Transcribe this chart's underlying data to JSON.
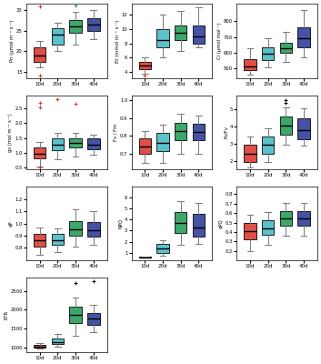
{
  "subplots": [
    {
      "ylabel": "Pn (μmol m⁻² s⁻¹)",
      "ylim": [
        13.5,
        31.5
      ],
      "yticks": [
        15,
        20,
        25,
        30
      ],
      "boxes": [
        {
          "q1": 17.5,
          "median": 19.0,
          "q3": 21.0,
          "whislo": 16.0,
          "whishi": 22.5,
          "fliers": [
            14.0,
            30.8
          ]
        },
        {
          "q1": 21.5,
          "median": 24.0,
          "q3": 25.5,
          "whislo": 20.0,
          "whishi": 27.0,
          "fliers": []
        },
        {
          "q1": 24.5,
          "median": 26.0,
          "q3": 27.5,
          "whislo": 21.5,
          "whishi": 29.5,
          "fliers": [
            31.2
          ]
        },
        {
          "q1": 25.0,
          "median": 26.5,
          "q3": 28.0,
          "whislo": 23.0,
          "whishi": 30.0,
          "fliers": []
        }
      ]
    },
    {
      "ylabel": "Et (mmol m⁻² s⁻¹)",
      "ylim": [
        3.2,
        13.5
      ],
      "yticks": [
        4,
        6,
        8,
        10,
        12
      ],
      "boxes": [
        {
          "q1": 4.4,
          "median": 4.9,
          "q3": 5.4,
          "whislo": 3.8,
          "whishi": 6.0,
          "fliers": [
            3.5
          ]
        },
        {
          "q1": 7.5,
          "median": 8.5,
          "q3": 10.0,
          "whislo": 6.0,
          "whishi": 12.0,
          "fliers": []
        },
        {
          "q1": 8.5,
          "median": 9.5,
          "q3": 10.5,
          "whislo": 7.0,
          "whishi": 12.5,
          "fliers": []
        },
        {
          "q1": 8.0,
          "median": 9.0,
          "q3": 10.5,
          "whislo": 7.5,
          "whishi": 13.0,
          "fliers": []
        }
      ]
    },
    {
      "ylabel": "Ci (μmol mol⁻¹)",
      "ylim": [
        440,
        910
      ],
      "yticks": [
        500,
        600,
        700,
        800
      ],
      "boxes": [
        {
          "q1": 490,
          "median": 510,
          "q3": 560,
          "whislo": 460,
          "whishi": 630,
          "fliers": []
        },
        {
          "q1": 555,
          "median": 595,
          "q3": 635,
          "whislo": 505,
          "whishi": 690,
          "fliers": []
        },
        {
          "q1": 600,
          "median": 630,
          "q3": 660,
          "whislo": 540,
          "whishi": 730,
          "fliers": []
        },
        {
          "q1": 635,
          "median": 690,
          "q3": 760,
          "whislo": 570,
          "whishi": 870,
          "fliers": []
        }
      ]
    },
    {
      "ylabel": "gs (mol m⁻² s⁻¹)",
      "ylim": [
        0.45,
        2.95
      ],
      "yticks": [
        0.5,
        1.0,
        1.5,
        2.0,
        2.5
      ],
      "boxes": [
        {
          "q1": 0.82,
          "median": 0.98,
          "q3": 1.18,
          "whislo": 0.55,
          "whishi": 1.38,
          "fliers": [
            0.5,
            2.55,
            2.7
          ]
        },
        {
          "q1": 1.08,
          "median": 1.28,
          "q3": 1.48,
          "whislo": 0.78,
          "whishi": 1.68,
          "fliers": [
            2.8
          ]
        },
        {
          "q1": 1.18,
          "median": 1.33,
          "q3": 1.48,
          "whislo": 0.88,
          "whishi": 1.68,
          "fliers": [
            2.65
          ]
        },
        {
          "q1": 1.13,
          "median": 1.28,
          "q3": 1.48,
          "whislo": 0.93,
          "whishi": 1.63,
          "fliers": []
        }
      ]
    },
    {
      "ylabel": "Fv / Fm",
      "ylim": [
        0.61,
        1.03
      ],
      "yticks": [
        0.7,
        0.8,
        0.9,
        1.0
      ],
      "boxes": [
        {
          "q1": 0.695,
          "median": 0.74,
          "q3": 0.785,
          "whislo": 0.645,
          "whishi": 0.825,
          "fliers": []
        },
        {
          "q1": 0.715,
          "median": 0.76,
          "q3": 0.815,
          "whislo": 0.645,
          "whishi": 0.865,
          "fliers": []
        },
        {
          "q1": 0.775,
          "median": 0.825,
          "q3": 0.875,
          "whislo": 0.695,
          "whishi": 0.925,
          "fliers": []
        },
        {
          "q1": 0.775,
          "median": 0.82,
          "q3": 0.87,
          "whislo": 0.695,
          "whishi": 0.915,
          "fliers": []
        }
      ]
    },
    {
      "ylabel": "Fo/Fv",
      "ylim": [
        1.5,
        5.8
      ],
      "yticks": [
        2,
        3,
        4,
        5
      ],
      "boxes": [
        {
          "q1": 1.9,
          "median": 2.4,
          "q3": 2.9,
          "whislo": 1.6,
          "whishi": 3.4,
          "fliers": []
        },
        {
          "q1": 2.4,
          "median": 2.9,
          "q3": 3.4,
          "whislo": 1.9,
          "whishi": 3.9,
          "fliers": []
        },
        {
          "q1": 3.5,
          "median": 4.05,
          "q3": 4.55,
          "whislo": 2.95,
          "whishi": 5.1,
          "fliers": [
            5.35,
            5.5
          ]
        },
        {
          "q1": 3.25,
          "median": 3.75,
          "q3": 4.45,
          "whislo": 2.85,
          "whishi": 5.05,
          "fliers": []
        }
      ]
    },
    {
      "ylabel": "qP",
      "ylim": [
        0.69,
        1.31
      ],
      "yticks": [
        0.8,
        0.9,
        1.0,
        1.1,
        1.2
      ],
      "boxes": [
        {
          "q1": 0.81,
          "median": 0.86,
          "q3": 0.91,
          "whislo": 0.74,
          "whishi": 0.97,
          "fliers": []
        },
        {
          "q1": 0.82,
          "median": 0.86,
          "q3": 0.91,
          "whislo": 0.76,
          "whishi": 0.96,
          "fliers": []
        },
        {
          "q1": 0.9,
          "median": 0.95,
          "q3": 1.02,
          "whislo": 0.81,
          "whishi": 1.12,
          "fliers": []
        },
        {
          "q1": 0.89,
          "median": 0.94,
          "q3": 1.01,
          "whislo": 0.82,
          "whishi": 1.1,
          "fliers": []
        }
      ]
    },
    {
      "ylabel": "NPQ",
      "ylim": [
        0.3,
        7.0
      ],
      "yticks": [
        1,
        2,
        3,
        4,
        5,
        6
      ],
      "boxes": [
        {
          "q1": 0.555,
          "median": 0.585,
          "q3": 0.615,
          "whislo": 0.535,
          "whishi": 0.635,
          "fliers": []
        },
        {
          "q1": 1.0,
          "median": 1.4,
          "q3": 1.8,
          "whislo": 0.7,
          "whishi": 2.1,
          "fliers": []
        },
        {
          "q1": 2.8,
          "median": 3.7,
          "q3": 4.7,
          "whislo": 1.7,
          "whishi": 5.7,
          "fliers": []
        },
        {
          "q1": 2.5,
          "median": 3.3,
          "q3": 4.5,
          "whislo": 1.8,
          "whishi": 5.5,
          "fliers": []
        }
      ]
    },
    {
      "ylabel": "qPQ",
      "ylim": [
        0.1,
        0.88
      ],
      "yticks": [
        0.2,
        0.3,
        0.4,
        0.5,
        0.6,
        0.7,
        0.8
      ],
      "boxes": [
        {
          "q1": 0.32,
          "median": 0.41,
          "q3": 0.5,
          "whislo": 0.2,
          "whishi": 0.58,
          "fliers": []
        },
        {
          "q1": 0.37,
          "median": 0.44,
          "q3": 0.52,
          "whislo": 0.27,
          "whishi": 0.61,
          "fliers": []
        },
        {
          "q1": 0.47,
          "median": 0.54,
          "q3": 0.62,
          "whislo": 0.36,
          "whishi": 0.71,
          "fliers": []
        },
        {
          "q1": 0.47,
          "median": 0.54,
          "q3": 0.62,
          "whislo": 0.36,
          "whishi": 0.71,
          "fliers": []
        }
      ]
    },
    {
      "ylabel": "ETR",
      "ylim": [
        880,
        2850
      ],
      "yticks": [
        1000,
        1500,
        2000,
        2500
      ],
      "boxes": [
        {
          "q1": 990,
          "median": 1020,
          "q3": 1060,
          "whislo": 960,
          "whishi": 1110,
          "fliers": []
        },
        {
          "q1": 1080,
          "median": 1150,
          "q3": 1230,
          "whislo": 1010,
          "whishi": 1360,
          "fliers": []
        },
        {
          "q1": 1650,
          "median": 1860,
          "q3": 2070,
          "whislo": 1300,
          "whishi": 2330,
          "fliers": [
            2700
          ]
        },
        {
          "q1": 1600,
          "median": 1760,
          "q3": 1920,
          "whislo": 1400,
          "whishi": 2120,
          "fliers": [
            2760
          ]
        }
      ]
    }
  ],
  "categories": [
    "10d",
    "20d",
    "30d",
    "40d"
  ],
  "colors": [
    "#d73027",
    "#41b6c4",
    "#1a9850",
    "#253494"
  ],
  "n_rows": 4,
  "n_cols": 3,
  "figsize": [
    3.53,
    4.0
  ],
  "dpi": 100
}
